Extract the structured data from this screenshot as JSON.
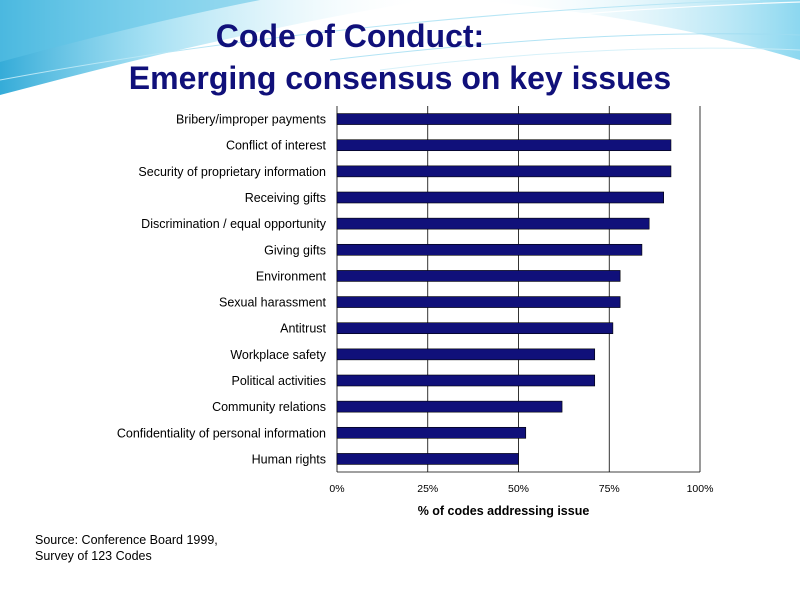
{
  "slide": {
    "title_line1": "Code of Conduct:",
    "title_line2": "Emerging consensus on key issues",
    "source_line1": "Source:  Conference Board 1999,",
    "source_line2": "Survey of 123 Codes",
    "colors": {
      "title": "#10107a",
      "bar": "#10107a",
      "swoosh_light": "#cdeef8",
      "swoosh_mid": "#7fd3ee",
      "swoosh_dark": "#2aa7d6"
    }
  },
  "chart_data": {
    "type": "bar",
    "orientation": "horizontal",
    "categories": [
      "Bribery/improper payments",
      "Conflict of interest",
      "Security of proprietary information",
      "Receiving gifts",
      "Discrimination / equal opportunity",
      "Giving gifts",
      "Environment",
      "Sexual harassment",
      "Antitrust",
      "Workplace safety",
      "Political activities",
      "Community relations",
      "Confidentiality of personal information",
      "Human rights"
    ],
    "values": [
      92,
      92,
      92,
      90,
      86,
      84,
      78,
      78,
      76,
      71,
      71,
      62,
      52,
      50
    ],
    "unit": "%",
    "xlabel": "% of codes addressing issue",
    "ylabel": "",
    "xlim": [
      0,
      100
    ],
    "xticks": [
      0,
      25,
      50,
      75,
      100
    ],
    "xtick_labels": [
      "0%",
      "25%",
      "50%",
      "75%",
      "100%"
    ],
    "grid": "vertical gridlines at each tick",
    "legend": "none"
  }
}
